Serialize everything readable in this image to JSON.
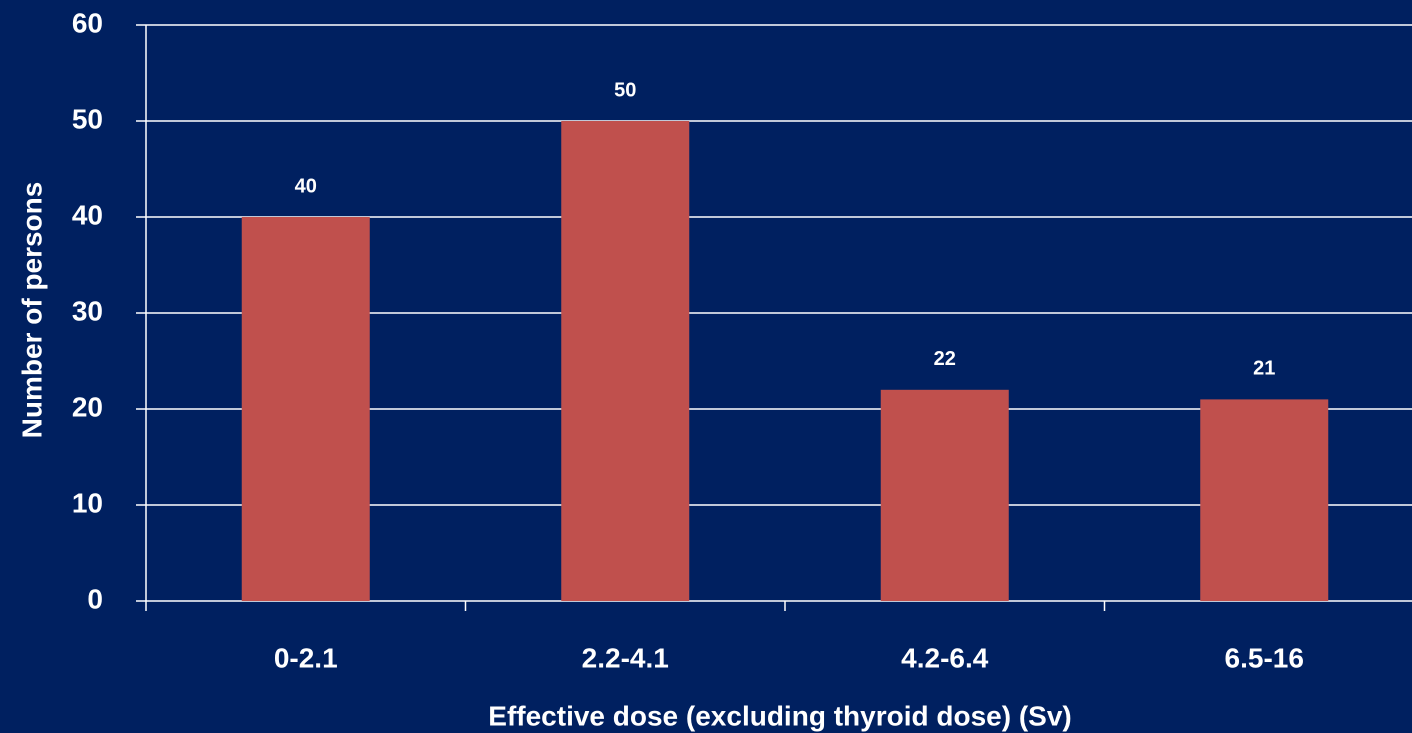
{
  "chart_data": {
    "type": "bar",
    "categories": [
      "0-2.1",
      "2.2-4.1",
      "4.2-6.4",
      "6.5-16"
    ],
    "values": [
      40,
      50,
      22,
      21
    ],
    "color": "#c0504d",
    "xlabel": "Effective dose (excluding thyroid dose) (Sv)",
    "ylabel": "Number of persons",
    "ylim": [
      0,
      60
    ],
    "yticks": [
      0,
      10,
      20,
      30,
      40,
      50,
      60
    ],
    "grid": true
  }
}
